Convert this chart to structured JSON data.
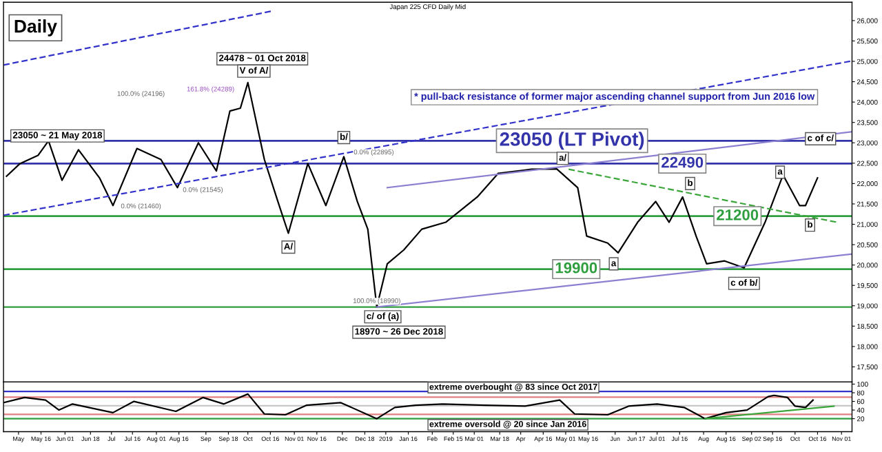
{
  "chart_data": [
    {
      "type": "line",
      "title": "Daily",
      "subtitle": "Japan 225 CFD Daily Mid",
      "xlim": [
        "2018-04-21",
        "2019-11-08"
      ],
      "ylim": [
        17130,
        26450
      ],
      "yticks": [
        {
          "value": 17500,
          "label": "17,500"
        },
        {
          "value": 18000,
          "label": "18,000"
        },
        {
          "value": 18500,
          "label": "18,500"
        },
        {
          "value": 19000,
          "label": "19,000"
        },
        {
          "value": 19500,
          "label": "19,500"
        },
        {
          "value": 20000,
          "label": "20,000"
        },
        {
          "value": 20500,
          "label": "20,500"
        },
        {
          "value": 21000,
          "label": "21,000"
        },
        {
          "value": 21500,
          "label": "21,500"
        },
        {
          "value": 22000,
          "label": "22,000"
        },
        {
          "value": 22500,
          "label": "22,500"
        },
        {
          "value": 23000,
          "label": "23,000"
        },
        {
          "value": 23500,
          "label": "23,500"
        },
        {
          "value": 24000,
          "label": "24,000"
        },
        {
          "value": 24500,
          "label": "24,500"
        },
        {
          "value": 25000,
          "label": "25,000"
        },
        {
          "value": 25500,
          "label": "25,500"
        },
        {
          "value": 26000,
          "label": "26,000"
        }
      ],
      "tick_labels": "y",
      "grid": false,
      "marker": "none",
      "series": [
        {
          "color": "#000000",
          "line_style": "solid",
          "x": [
            "2018-04-23",
            "2018-05-02",
            "2018-05-14",
            "2018-05-21",
            "2018-05-30",
            "2018-06-10",
            "2018-06-24",
            "2018-07-03",
            "2018-07-19",
            "2018-08-04",
            "2018-08-15",
            "2018-08-29",
            "2018-09-10",
            "2018-09-19",
            "2018-09-26",
            "2018-10-01",
            "2018-10-12",
            "2018-10-21",
            "2018-10-28",
            "2018-11-10",
            "2018-11-22",
            "2018-12-04",
            "2018-12-13",
            "2018-12-20",
            "2018-12-26",
            "2019-01-02",
            "2019-01-13",
            "2019-01-25",
            "2019-02-10",
            "2019-03-03",
            "2019-03-17",
            "2019-04-08",
            "2019-04-25",
            "2019-05-09",
            "2019-05-15",
            "2019-05-29",
            "2019-06-05",
            "2019-06-18",
            "2019-06-30",
            "2019-07-09",
            "2019-07-18",
            "2019-07-27",
            "2019-08-03",
            "2019-08-15",
            "2019-08-28",
            "2019-09-11",
            "2019-09-23",
            "2019-10-04",
            "2019-10-08",
            "2019-10-16"
          ],
          "values": [
            22180,
            22490,
            22690,
            23050,
            22080,
            22830,
            22140,
            21460,
            22860,
            22590,
            21900,
            23000,
            22310,
            23780,
            23850,
            24478,
            22590,
            21560,
            20780,
            22490,
            21460,
            22660,
            21560,
            20880,
            18970,
            20030,
            20370,
            20880,
            21050,
            21670,
            22250,
            22350,
            22360,
            21900,
            20710,
            20540,
            20300,
            21050,
            21560,
            21050,
            21670,
            20710,
            20030,
            20100,
            19930,
            21050,
            22210,
            21460,
            21460,
            22140
          ]
        },
        {
          "color": "#3333cc",
          "line_style": "dashed",
          "x": [
            "2018-04-21",
            "2018-10-18"
          ],
          "values": [
            24910,
            26240
          ]
        },
        {
          "color": "#3333cc",
          "line_style": "dashed",
          "x": [
            "2018-04-21",
            "2019-11-08"
          ],
          "values": [
            21220,
            25010
          ]
        },
        {
          "color": "#8a7fd0",
          "line_style": "solid",
          "x": [
            "2019-01-02",
            "2019-11-08"
          ],
          "values": [
            21900,
            23270
          ]
        },
        {
          "color": "#8a7fd0",
          "line_style": "solid",
          "x": [
            "2018-12-26",
            "2019-11-08"
          ],
          "values": [
            18970,
            20270
          ]
        },
        {
          "color": "#3aa63a",
          "line_style": "dashed",
          "x": [
            "2019-05-03",
            "2019-10-29"
          ],
          "values": [
            22350,
            21050
          ]
        }
      ],
      "ref_lines": [
        {
          "axis": "y",
          "value": 23050,
          "label": "23050 (LT Pivot)",
          "color": "#3333aa"
        },
        {
          "axis": "y",
          "value": 22490,
          "label": "22490",
          "color": "#3333aa"
        },
        {
          "axis": "y",
          "value": 21200,
          "label": "21200",
          "color": "#2e9e3e"
        },
        {
          "axis": "y",
          "value": 19900,
          "label": "19900",
          "color": "#2e9e3e"
        },
        {
          "axis": "y",
          "value": 18970,
          "label": null,
          "color": "#2e9e3e"
        }
      ],
      "annotations": [
        "* pull-back resistance of former major ascending channel support from Jun 2016 low",
        "24478 ~ 01 Oct 2018",
        {
          "text": "V of A/",
          "x": "2018-10-05",
          "y": 24760
        },
        {
          "text": "23050 ~ 21 May 2018",
          "x": "2018-05-27",
          "y": 23170
        },
        {
          "text": "b/",
          "x": "2018-12-04",
          "y": 23130
        },
        {
          "text": "A/",
          "x": "2018-10-28",
          "y": 20440
        },
        {
          "text": "c/ of (a)",
          "x": "2018-12-30",
          "y": 18730
        },
        "18970 ~ 26 Dec 2018",
        {
          "text": "a/",
          "x": "2019-04-29",
          "y": 22620
        },
        {
          "text": "b",
          "x": "2019-07-23",
          "y": 22000
        },
        {
          "text": "a",
          "x": "2019-06-02",
          "y": 20030
        },
        {
          "text": "c of b/",
          "x": "2019-08-28",
          "y": 19550
        },
        {
          "text": "a",
          "x": "2019-09-21",
          "y": 22280
        },
        {
          "text": "b",
          "x": "2019-10-11",
          "y": 20980
        },
        {
          "text": "c of c/",
          "x": "2019-10-18",
          "y": 23100
        },
        "100.0% (24196)",
        "161.8% (24289)",
        {
          "text": "0.0% (22895)",
          "x": "2018-12-24",
          "y": 22760
        },
        "0.0% (21545)",
        "0.0% (21460)",
        {
          "text": "100.0% (18990)",
          "x": "2018-12-26",
          "y": 19110
        }
      ]
    },
    {
      "type": "line",
      "xlim": [
        "2018-04-21",
        "2019-11-08"
      ],
      "ylim": [
        -10,
        105
      ],
      "yticks": [
        20,
        40,
        60,
        80,
        100
      ],
      "grid": false,
      "marker": "none",
      "xticks": [
        {
          "value": "2018-05-01",
          "label": "May"
        },
        {
          "value": "2018-05-16",
          "label": "May 16"
        },
        {
          "value": "2018-06-01",
          "label": "Jun 01"
        },
        {
          "value": "2018-06-18",
          "label": "Jun 18"
        },
        {
          "value": "2018-07-02",
          "label": "Jul"
        },
        {
          "value": "2018-07-16",
          "label": "Jul 16"
        },
        {
          "value": "2018-08-01",
          "label": "Aug 01"
        },
        {
          "value": "2018-08-16",
          "label": "Aug 16"
        },
        {
          "value": "2018-09-03",
          "label": "Sep"
        },
        {
          "value": "2018-09-18",
          "label": "Sep 18"
        },
        {
          "value": "2018-10-01",
          "label": "Oct"
        },
        {
          "value": "2018-10-16",
          "label": "Oct 16"
        },
        {
          "value": "2018-11-01",
          "label": "Nov 01"
        },
        {
          "value": "2018-11-16",
          "label": "Nov 16"
        },
        {
          "value": "2018-12-03",
          "label": "Dec"
        },
        {
          "value": "2018-12-18",
          "label": "Dec 18"
        },
        {
          "value": "2019-01-01",
          "label": "2019"
        },
        {
          "value": "2019-01-16",
          "label": "Jan 16"
        },
        {
          "value": "2019-02-01",
          "label": "Feb"
        },
        {
          "value": "2019-02-15",
          "label": "Feb 15"
        },
        {
          "value": "2019-03-01",
          "label": "Mar 01"
        },
        {
          "value": "2019-03-18",
          "label": "Mar 18"
        },
        {
          "value": "2019-04-01",
          "label": "Apr"
        },
        {
          "value": "2019-04-16",
          "label": "Apr 16"
        },
        {
          "value": "2019-05-01",
          "label": "May 01"
        },
        {
          "value": "2019-05-16",
          "label": "May 16"
        },
        {
          "value": "2019-06-03",
          "label": "Jun"
        },
        {
          "value": "2019-06-17",
          "label": "Jun 17"
        },
        {
          "value": "2019-07-01",
          "label": "Jul 01"
        },
        {
          "value": "2019-07-16",
          "label": "Jul 16"
        },
        {
          "value": "2019-08-01",
          "label": "Aug"
        },
        {
          "value": "2019-08-16",
          "label": "Aug 16"
        },
        {
          "value": "2019-09-02",
          "label": "Sep 02"
        },
        {
          "value": "2019-09-16",
          "label": "Sep 16"
        },
        {
          "value": "2019-10-01",
          "label": "Oct"
        },
        {
          "value": "2019-10-16",
          "label": "Oct 16"
        },
        {
          "value": "2019-11-01",
          "label": "Nov 01"
        }
      ],
      "series": [
        {
          "color": "#000000",
          "line_style": "solid",
          "x": [
            "2018-04-21",
            "2018-05-05",
            "2018-05-19",
            "2018-05-28",
            "2018-06-06",
            "2018-07-03",
            "2018-07-17",
            "2018-08-14",
            "2018-09-01",
            "2018-09-15",
            "2018-10-01",
            "2018-10-12",
            "2018-10-26",
            "2018-11-09",
            "2018-12-02",
            "2018-12-26",
            "2019-01-07",
            "2019-01-21",
            "2019-02-08",
            "2019-03-08",
            "2019-04-04",
            "2019-04-27",
            "2019-05-07",
            "2019-05-29",
            "2019-06-12",
            "2019-07-01",
            "2019-07-19",
            "2019-08-02",
            "2019-08-16",
            "2019-08-30",
            "2019-09-13",
            "2019-09-17",
            "2019-09-26",
            "2019-10-01",
            "2019-10-08",
            "2019-10-13"
          ],
          "values": [
            57,
            69,
            63,
            40,
            54,
            34,
            60,
            37,
            69,
            54,
            77,
            31,
            29,
            51,
            57,
            20,
            46,
            51,
            54,
            51,
            49,
            63,
            31,
            29,
            49,
            54,
            46,
            20,
            34,
            40,
            71,
            74,
            69,
            49,
            46,
            63
          ]
        },
        {
          "color": "#3aa63a",
          "line_style": "solid",
          "x": [
            "2019-08-02",
            "2019-10-27"
          ],
          "values": [
            20,
            49
          ]
        }
      ],
      "ref_lines": [
        {
          "axis": "y",
          "value": 83,
          "label": null,
          "color": "#3333cc"
        },
        {
          "axis": "y",
          "value": 70,
          "label": null,
          "color": "#e08080"
        },
        {
          "axis": "y",
          "value": 50,
          "label": null,
          "color": "#c8c8c8"
        },
        {
          "axis": "y",
          "value": 30,
          "label": null,
          "color": "#e08080"
        },
        {
          "axis": "y",
          "value": 20,
          "label": null,
          "color": "#2e9e3e"
        }
      ],
      "annotations": [
        {
          "text": "extreme overbought @ 83 since Oct 2017",
          "x": "2019-01-30",
          "y": 92
        },
        {
          "text": "extreme oversold @ 20 since Jan 2016",
          "x": "2019-01-30",
          "y": 6
        }
      ]
    }
  ]
}
